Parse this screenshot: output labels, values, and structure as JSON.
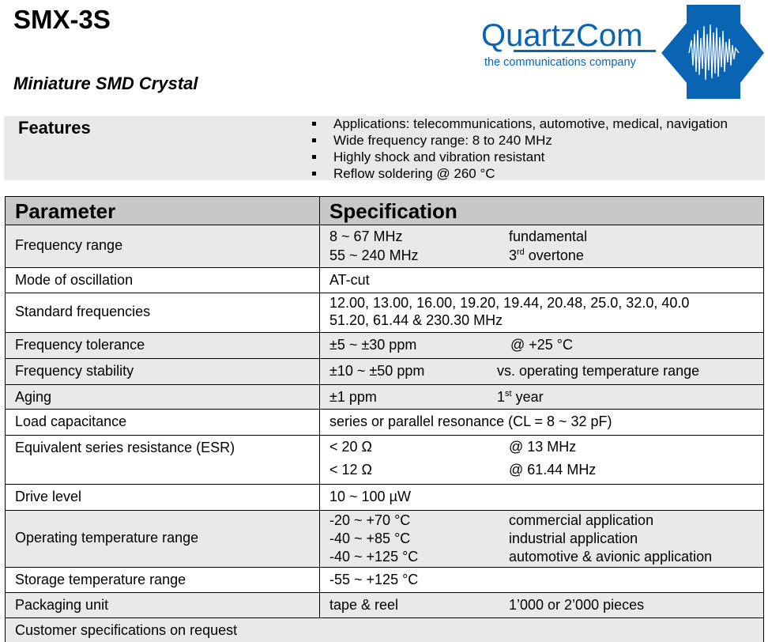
{
  "header": {
    "title": "SMX-3S",
    "subtitle": "Miniature SMD Crystal"
  },
  "logo": {
    "name": "QuartzCom",
    "tagline": "the communications company",
    "color": "#0a64b4"
  },
  "features": {
    "title": "Features",
    "items": [
      "Applications: telecommunications, automotive, medical, navigation",
      "Wide frequency range: 8 to 240 MHz",
      "Highly shock and vibration resistant",
      "Reflow soldering @ 260 °C"
    ]
  },
  "table": {
    "headers": [
      "Parameter",
      "Specification"
    ],
    "rows": [
      {
        "parameter": "Frequency range",
        "shaded": true,
        "lines": [
          [
            "8 ~ 67 MHz",
            "fundamental"
          ],
          [
            "55 ~ 240 MHz",
            "3|rd| overtone"
          ]
        ]
      },
      {
        "parameter": "Mode of oscillation",
        "shaded": false,
        "lines": [
          [
            "AT-cut",
            ""
          ]
        ]
      },
      {
        "parameter": "Standard frequencies",
        "shaded": false,
        "lines": [
          [
            "12.00, 13.00, 16.00, 19.20, 19.44, 20.48, 25.0, 32.0, 40.0",
            ""
          ],
          [
            "51.20, 61.44 & 230.30 MHz",
            ""
          ]
        ]
      },
      {
        "parameter": "Frequency tolerance",
        "shaded": true,
        "lines": [
          [
            "±5 ~ ±30 ppm",
            "@ +25 °C"
          ]
        ]
      },
      {
        "parameter": "Frequency stability",
        "shaded": true,
        "lines": [
          [
            "±10 ~ ±50 ppm",
            "vs. operating temperature range"
          ]
        ]
      },
      {
        "parameter": "Aging",
        "shaded": true,
        "lines": [
          [
            "±1 ppm",
            "1|st| year"
          ]
        ]
      },
      {
        "parameter": "Load capacitance",
        "shaded": false,
        "lines": [
          [
            "series or parallel resonance (CL = 8 ~ 32 pF)",
            ""
          ]
        ]
      },
      {
        "parameter": "Equivalent series resistance (ESR)",
        "shaded": false,
        "lines": [
          [
            "< 20 Ω",
            "@ 13 MHz"
          ],
          [
            "< 12 Ω",
            "@ 61.44 MHz"
          ]
        ]
      },
      {
        "parameter": "Drive level",
        "shaded": false,
        "lines": [
          [
            "10 ~ 100 µW",
            ""
          ]
        ]
      },
      {
        "parameter": "Operating temperature range",
        "shaded": true,
        "lines": [
          [
            "-20 ~ +70 °C",
            "commercial application"
          ],
          [
            "-40 ~ +85 °C",
            "industrial application"
          ],
          [
            "-40 ~ +125 °C",
            "automotive & avionic application"
          ]
        ]
      },
      {
        "parameter": "Storage temperature range",
        "shaded": false,
        "lines": [
          [
            "-55 ~ +125 °C",
            ""
          ]
        ]
      },
      {
        "parameter": "Packaging unit",
        "shaded": true,
        "lines": [
          [
            "tape & reel",
            "1’000 or 2’000 pieces"
          ]
        ]
      }
    ],
    "footer": "Customer specifications on request"
  }
}
